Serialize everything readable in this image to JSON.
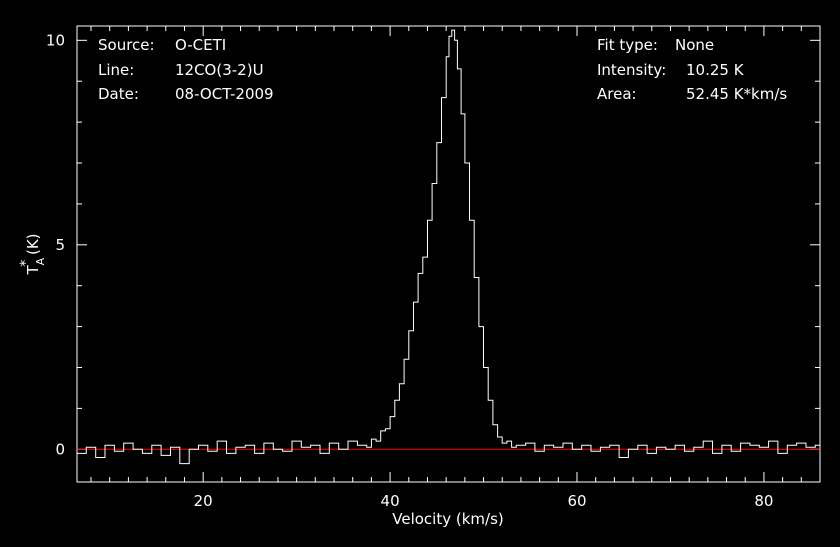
{
  "header_left": {
    "source_label": "Source:",
    "source_value": "O-CETI",
    "line_label": "Line:",
    "line_value": "12CO(3-2)U",
    "date_label": "Date:",
    "date_value": "08-OCT-2009"
  },
  "header_right": {
    "fit_label": "Fit type:",
    "fit_value": "None",
    "intensity_label": "Intensity:",
    "intensity_value": "10.25 K",
    "area_label": "Area:",
    "area_value": "52.45 K*km/s"
  },
  "chart_data": {
    "type": "line",
    "title": "",
    "xlabel": "Velocity (km/s)",
    "ylabel_base": "T",
    "ylabel_sup": "*",
    "ylabel_sub": "A",
    "ylabel_unit": " (K)",
    "xlim": [
      6.5,
      86
    ],
    "ylim": [
      -0.8,
      10.35
    ],
    "xticks": [
      20,
      40,
      60,
      80
    ],
    "xminor_step": 2,
    "yticks": [
      0,
      5,
      10
    ],
    "yminor_step": 1,
    "grid": false,
    "colors": {
      "background": "#000000",
      "axes": "#ffffff",
      "spectrum": "#ffffff",
      "baseline": "#ff0000"
    },
    "baseline_value": 0,
    "series": [
      {
        "style": "steps",
        "peak_velocity": 46.6,
        "peak_intensity": 10.25,
        "x": [
          6.5,
          7.5,
          8.5,
          9.5,
          10.5,
          11.5,
          12.5,
          13.5,
          14.5,
          15.5,
          16.5,
          17.5,
          18.5,
          19.5,
          20.5,
          21.5,
          22.5,
          23.5,
          24.5,
          25.5,
          26.5,
          27.5,
          28.5,
          29.5,
          30.5,
          31.5,
          32.5,
          33.5,
          34.5,
          35.5,
          36.5,
          37.5,
          38.0,
          38.5,
          39.0,
          39.5,
          40.0,
          40.5,
          41.0,
          41.5,
          42.0,
          42.5,
          43.0,
          43.5,
          44.0,
          44.5,
          45.0,
          45.5,
          46.0,
          46.3,
          46.6,
          46.9,
          47.2,
          47.6,
          48.0,
          48.5,
          49.0,
          49.5,
          50.0,
          50.5,
          51.0,
          51.5,
          52.0,
          52.5,
          53.0,
          53.5,
          54.5,
          55.5,
          56.5,
          57.5,
          58.5,
          59.5,
          60.5,
          61.5,
          62.5,
          63.5,
          64.5,
          65.5,
          66.5,
          67.5,
          68.5,
          69.5,
          70.5,
          71.5,
          72.5,
          73.5,
          74.5,
          75.5,
          76.5,
          77.5,
          78.5,
          79.5,
          80.5,
          81.5,
          82.5,
          83.5,
          84.5,
          85.5
        ],
        "y": [
          -0.1,
          0.05,
          -0.2,
          0.1,
          -0.05,
          0.15,
          0.0,
          -0.1,
          0.1,
          -0.15,
          0.05,
          -0.35,
          0.0,
          0.1,
          -0.05,
          0.2,
          -0.1,
          0.05,
          0.1,
          -0.1,
          0.15,
          0.0,
          -0.05,
          0.2,
          0.05,
          0.1,
          -0.1,
          0.15,
          0.0,
          0.2,
          0.1,
          0.05,
          0.25,
          0.2,
          0.45,
          0.5,
          0.8,
          1.2,
          1.6,
          2.2,
          2.9,
          3.6,
          4.3,
          4.7,
          5.6,
          6.5,
          7.5,
          8.6,
          9.6,
          10.1,
          10.25,
          10.0,
          9.3,
          8.2,
          7.0,
          5.6,
          4.2,
          3.0,
          2.0,
          1.2,
          0.6,
          0.3,
          0.15,
          0.2,
          0.05,
          0.1,
          0.15,
          -0.05,
          0.1,
          0.05,
          0.15,
          0.0,
          0.1,
          -0.05,
          0.05,
          0.1,
          -0.2,
          0.0,
          0.1,
          -0.1,
          0.05,
          0.0,
          0.1,
          -0.05,
          0.05,
          0.2,
          -0.1,
          0.1,
          -0.05,
          0.15,
          0.1,
          0.05,
          0.2,
          -0.1,
          0.1,
          0.15,
          0.05,
          0.1
        ]
      }
    ]
  }
}
